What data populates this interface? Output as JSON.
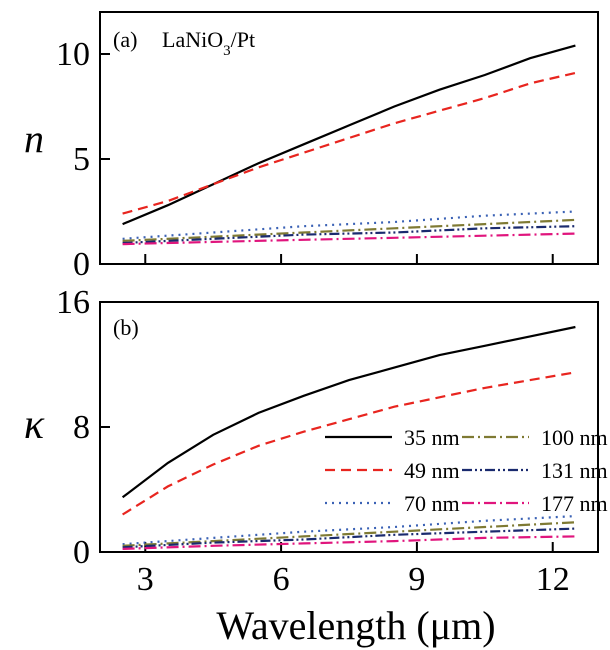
{
  "chart_data": [
    {
      "type": "line",
      "panel_label": "(a)",
      "sample_label": "LaNiO",
      "sample_subscript": "3",
      "sample_suffix": "/Pt",
      "ylabel": "n",
      "xlabel": "",
      "ylim": [
        0,
        12
      ],
      "yticks": [
        0,
        5,
        10
      ],
      "xlim": [
        2.0,
        13.0
      ],
      "xticks": [
        3,
        6,
        9,
        12
      ],
      "grid": false,
      "series": [
        {
          "name": "35 nm",
          "color": "#000000",
          "dash": "solid",
          "x": [
            2.5,
            3.5,
            4.5,
            5.5,
            6.5,
            7.5,
            8.5,
            9.5,
            10.5,
            11.5,
            12.5
          ],
          "values": [
            1.9,
            2.8,
            3.8,
            4.8,
            5.7,
            6.6,
            7.5,
            8.3,
            9.0,
            9.8,
            10.4
          ]
        },
        {
          "name": "49 nm",
          "color": "#e8251f",
          "dash": "dashed",
          "x": [
            2.5,
            3.5,
            4.5,
            5.5,
            6.5,
            7.5,
            8.5,
            9.5,
            10.5,
            11.5,
            12.5
          ],
          "values": [
            2.4,
            3.0,
            3.8,
            4.6,
            5.3,
            6.0,
            6.7,
            7.3,
            7.9,
            8.6,
            9.1
          ]
        },
        {
          "name": "70 nm",
          "color": "#3b62b5",
          "dash": "dotted",
          "x": [
            2.5,
            4.5,
            6.5,
            8.5,
            10.5,
            12.5
          ],
          "values": [
            1.2,
            1.5,
            1.8,
            2.0,
            2.3,
            2.5
          ]
        },
        {
          "name": "100 nm",
          "color": "#7f7a33",
          "dash": "dashdot",
          "x": [
            2.5,
            4.5,
            6.5,
            8.5,
            10.5,
            12.5
          ],
          "values": [
            1.1,
            1.3,
            1.5,
            1.7,
            1.9,
            2.1
          ]
        },
        {
          "name": "131 nm",
          "color": "#1a2a6e",
          "dash": "dashdotdot",
          "x": [
            2.5,
            4.5,
            6.5,
            8.5,
            10.5,
            12.5
          ],
          "values": [
            1.0,
            1.2,
            1.4,
            1.5,
            1.7,
            1.8
          ]
        },
        {
          "name": "177 nm",
          "color": "#e0157d",
          "dash": "dashdot",
          "x": [
            2.5,
            4.5,
            6.5,
            8.5,
            10.5,
            12.5
          ],
          "values": [
            0.95,
            1.05,
            1.15,
            1.25,
            1.35,
            1.45
          ]
        }
      ]
    },
    {
      "type": "line",
      "panel_label": "(b)",
      "ylabel": "κ",
      "xlabel": "Wavelength (μm)",
      "ylim": [
        0,
        16
      ],
      "yticks": [
        0,
        8,
        16
      ],
      "xlim": [
        2.0,
        13.0
      ],
      "xticks": [
        3,
        6,
        9,
        12
      ],
      "grid": false,
      "legend_position": "lower-right",
      "series": [
        {
          "name": "35 nm",
          "color": "#000000",
          "dash": "solid",
          "x": [
            2.5,
            3.5,
            4.5,
            5.5,
            6.5,
            7.5,
            8.5,
            9.5,
            10.5,
            11.5,
            12.5
          ],
          "values": [
            3.5,
            5.7,
            7.5,
            8.9,
            10.0,
            11.0,
            11.8,
            12.6,
            13.2,
            13.8,
            14.4
          ]
        },
        {
          "name": "49 nm",
          "color": "#e8251f",
          "dash": "dashed",
          "x": [
            2.5,
            3.5,
            4.5,
            5.5,
            6.5,
            7.5,
            8.5,
            9.5,
            10.5,
            11.5,
            12.5
          ],
          "values": [
            2.4,
            4.2,
            5.6,
            6.8,
            7.7,
            8.5,
            9.3,
            9.9,
            10.5,
            11.0,
            11.5
          ]
        },
        {
          "name": "70 nm",
          "color": "#3b62b5",
          "dash": "dotted",
          "x": [
            2.5,
            4.5,
            6.5,
            8.5,
            10.5,
            12.5
          ],
          "values": [
            0.5,
            0.9,
            1.3,
            1.6,
            2.0,
            2.3
          ]
        },
        {
          "name": "100 nm",
          "color": "#7f7a33",
          "dash": "dashdot",
          "x": [
            2.5,
            4.5,
            6.5,
            8.5,
            10.5,
            12.5
          ],
          "values": [
            0.4,
            0.7,
            1.0,
            1.3,
            1.6,
            1.9
          ]
        },
        {
          "name": "131 nm",
          "color": "#1a2a6e",
          "dash": "dashdotdot",
          "x": [
            2.5,
            4.5,
            6.5,
            8.5,
            10.5,
            12.5
          ],
          "values": [
            0.3,
            0.6,
            0.8,
            1.1,
            1.3,
            1.5
          ]
        },
        {
          "name": "177 nm",
          "color": "#e0157d",
          "dash": "dashdot",
          "x": [
            2.5,
            4.5,
            6.5,
            8.5,
            10.5,
            12.5
          ],
          "values": [
            0.2,
            0.4,
            0.55,
            0.7,
            0.9,
            1.0
          ]
        }
      ]
    }
  ]
}
